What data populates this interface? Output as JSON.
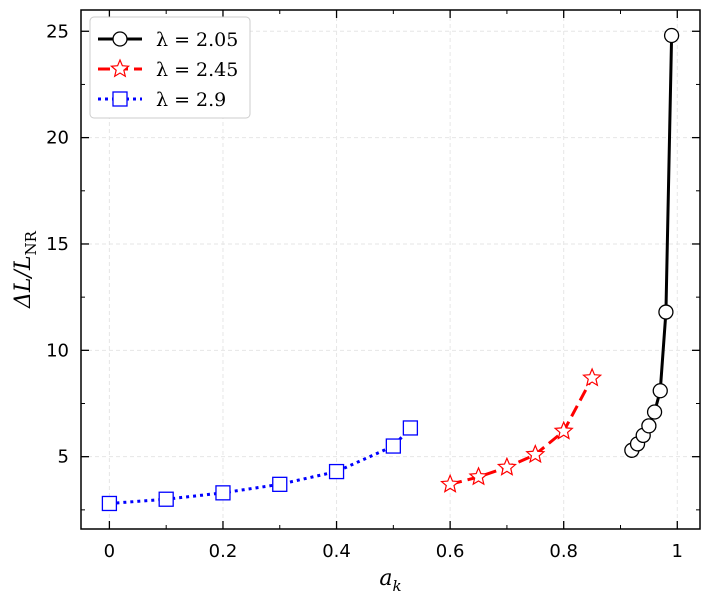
{
  "chart_data": {
    "type": "line",
    "title": "",
    "xlabel": "a",
    "xlabel_sub": "k",
    "ylabel": "ΔL/L",
    "ylabel_sub": "NR",
    "xlim": [
      -0.05,
      1.04
    ],
    "ylim": [
      1.6,
      26
    ],
    "xticks": [
      0,
      0.2,
      0.4,
      0.6,
      0.8,
      1
    ],
    "xtick_labels": [
      "0",
      "0.2",
      "0.4",
      "0.6",
      "0.8",
      "1"
    ],
    "yticks": [
      5,
      10,
      15,
      20,
      25
    ],
    "ytick_labels": [
      "5",
      "10",
      "15",
      "20",
      "25"
    ],
    "grid": true,
    "legend_position": "top-left",
    "series": [
      {
        "name": "λ = 2.05",
        "color": "#000000",
        "line_style": "solid",
        "marker": "circle",
        "x": [
          0.92,
          0.93,
          0.94,
          0.95,
          0.96,
          0.97,
          0.98,
          0.99
        ],
        "y": [
          5.3,
          5.6,
          6.0,
          6.45,
          7.1,
          8.1,
          11.8,
          24.8
        ]
      },
      {
        "name": "λ = 2.45",
        "color": "#ff0000",
        "line_style": "dashed",
        "marker": "star",
        "x": [
          0.6,
          0.65,
          0.7,
          0.75,
          0.8,
          0.85
        ],
        "y": [
          3.7,
          4.05,
          4.5,
          5.1,
          6.2,
          8.7
        ]
      },
      {
        "name": "λ = 2.9",
        "color": "#0000ff",
        "line_style": "dotted",
        "marker": "square",
        "x": [
          0.0,
          0.1,
          0.2,
          0.3,
          0.4,
          0.5,
          0.53
        ],
        "y": [
          2.8,
          3.0,
          3.3,
          3.7,
          4.3,
          5.5,
          6.35
        ]
      }
    ]
  }
}
